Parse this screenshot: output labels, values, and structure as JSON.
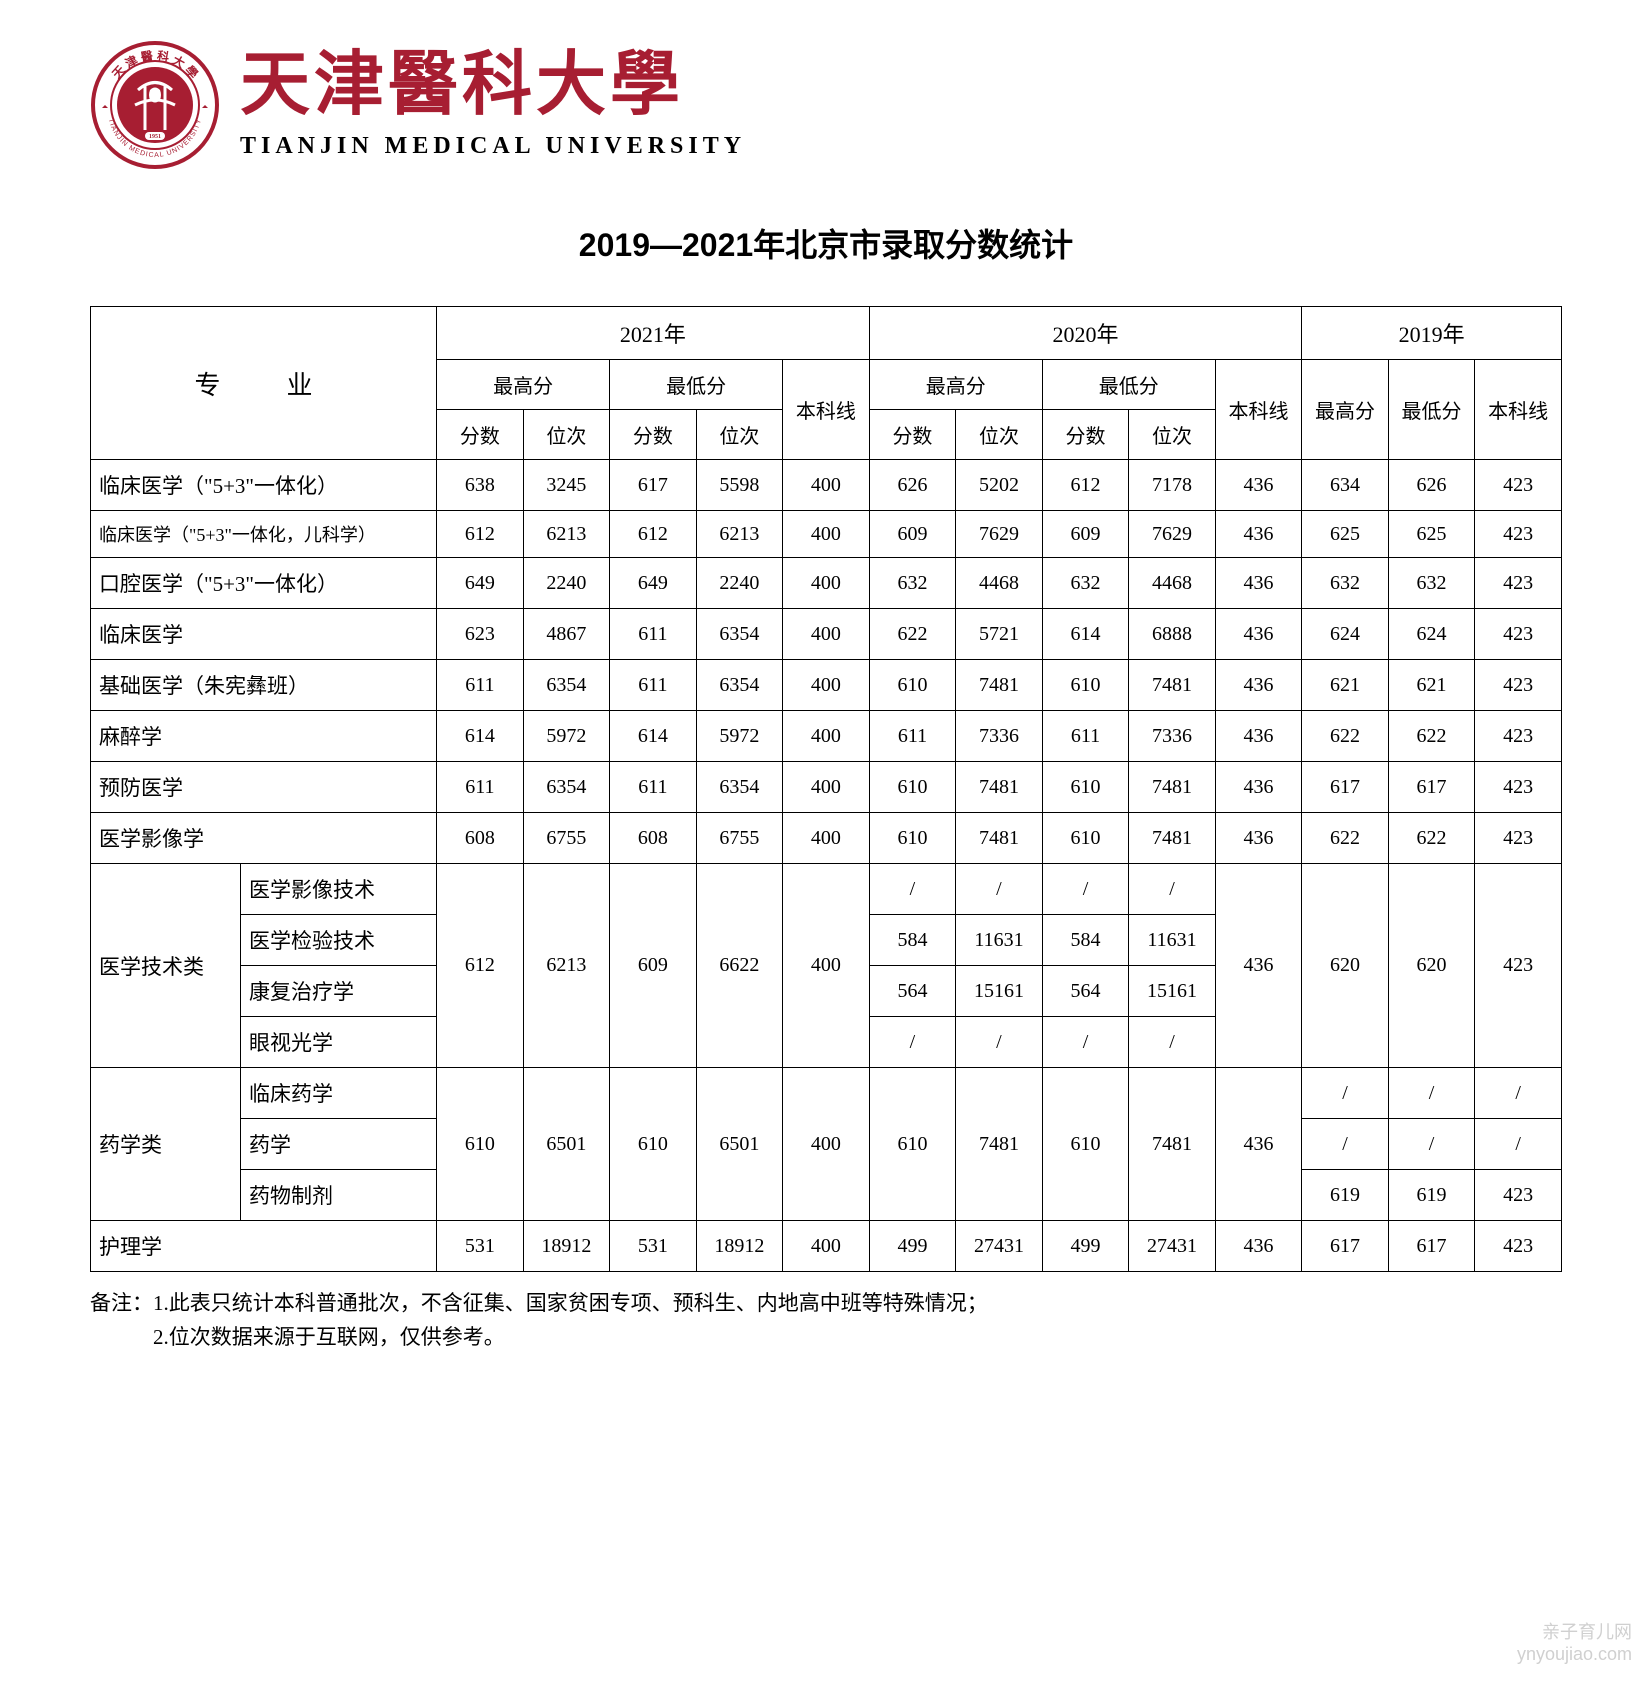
{
  "header": {
    "cn_name": "天津醫科大學",
    "en_name": "TIANJIN MEDICAL UNIVERSITY",
    "seal_text_cn": "天津醫科大學",
    "seal_text_en": "TIANJIN MEDICAL UNIVERSITY",
    "seal_year": "1951"
  },
  "title": "2019—2021年北京市录取分数统计",
  "table": {
    "header": {
      "major": "专　业",
      "years": [
        "2021年",
        "2020年",
        "2019年"
      ],
      "max_score": "最高分",
      "min_score": "最低分",
      "benke": "本科线",
      "score": "分数",
      "rank": "位次"
    },
    "rows": [
      {
        "major": "临床医学（\"5+3\"一体化）",
        "y2021": {
          "max_score": "638",
          "max_rank": "3245",
          "min_score": "617",
          "min_rank": "5598",
          "benke": "400"
        },
        "y2020": {
          "max_score": "626",
          "max_rank": "5202",
          "min_score": "612",
          "min_rank": "7178",
          "benke": "436"
        },
        "y2019": {
          "max": "634",
          "min": "626",
          "benke": "423"
        }
      },
      {
        "major": "临床医学（\"5+3\"一体化，儿科学）",
        "small": true,
        "y2021": {
          "max_score": "612",
          "max_rank": "6213",
          "min_score": "612",
          "min_rank": "6213",
          "benke": "400"
        },
        "y2020": {
          "max_score": "609",
          "max_rank": "7629",
          "min_score": "609",
          "min_rank": "7629",
          "benke": "436"
        },
        "y2019": {
          "max": "625",
          "min": "625",
          "benke": "423"
        }
      },
      {
        "major": "口腔医学（\"5+3\"一体化）",
        "y2021": {
          "max_score": "649",
          "max_rank": "2240",
          "min_score": "649",
          "min_rank": "2240",
          "benke": "400"
        },
        "y2020": {
          "max_score": "632",
          "max_rank": "4468",
          "min_score": "632",
          "min_rank": "4468",
          "benke": "436"
        },
        "y2019": {
          "max": "632",
          "min": "632",
          "benke": "423"
        }
      },
      {
        "major": "临床医学",
        "y2021": {
          "max_score": "623",
          "max_rank": "4867",
          "min_score": "611",
          "min_rank": "6354",
          "benke": "400"
        },
        "y2020": {
          "max_score": "622",
          "max_rank": "5721",
          "min_score": "614",
          "min_rank": "6888",
          "benke": "436"
        },
        "y2019": {
          "max": "624",
          "min": "624",
          "benke": "423"
        }
      },
      {
        "major": "基础医学（朱宪彝班）",
        "y2021": {
          "max_score": "611",
          "max_rank": "6354",
          "min_score": "611",
          "min_rank": "6354",
          "benke": "400"
        },
        "y2020": {
          "max_score": "610",
          "max_rank": "7481",
          "min_score": "610",
          "min_rank": "7481",
          "benke": "436"
        },
        "y2019": {
          "max": "621",
          "min": "621",
          "benke": "423"
        }
      },
      {
        "major": "麻醉学",
        "y2021": {
          "max_score": "614",
          "max_rank": "5972",
          "min_score": "614",
          "min_rank": "5972",
          "benke": "400"
        },
        "y2020": {
          "max_score": "611",
          "max_rank": "7336",
          "min_score": "611",
          "min_rank": "7336",
          "benke": "436"
        },
        "y2019": {
          "max": "622",
          "min": "622",
          "benke": "423"
        }
      },
      {
        "major": "预防医学",
        "y2021": {
          "max_score": "611",
          "max_rank": "6354",
          "min_score": "611",
          "min_rank": "6354",
          "benke": "400"
        },
        "y2020": {
          "max_score": "610",
          "max_rank": "7481",
          "min_score": "610",
          "min_rank": "7481",
          "benke": "436"
        },
        "y2019": {
          "max": "617",
          "min": "617",
          "benke": "423"
        }
      },
      {
        "major": "医学影像学",
        "y2021": {
          "max_score": "608",
          "max_rank": "6755",
          "min_score": "608",
          "min_rank": "6755",
          "benke": "400"
        },
        "y2020": {
          "max_score": "610",
          "max_rank": "7481",
          "min_score": "610",
          "min_rank": "7481",
          "benke": "436"
        },
        "y2019": {
          "max": "622",
          "min": "622",
          "benke": "423"
        }
      }
    ],
    "group_med_tech": {
      "group_name": "医学技术类",
      "subs": [
        "医学影像技术",
        "医学检验技术",
        "康复治疗学",
        "眼视光学"
      ],
      "y2021": {
        "max_score": "612",
        "max_rank": "6213",
        "min_score": "609",
        "min_rank": "6622",
        "benke": "400"
      },
      "y2020": [
        {
          "max_score": "/",
          "max_rank": "/",
          "min_score": "/",
          "min_rank": "/"
        },
        {
          "max_score": "584",
          "max_rank": "11631",
          "min_score": "584",
          "min_rank": "11631"
        },
        {
          "max_score": "564",
          "max_rank": "15161",
          "min_score": "564",
          "min_rank": "15161"
        },
        {
          "max_score": "/",
          "max_rank": "/",
          "min_score": "/",
          "min_rank": "/"
        }
      ],
      "y2020_benke": "436",
      "y2019": {
        "max": "620",
        "min": "620",
        "benke": "423"
      }
    },
    "group_pharmacy": {
      "group_name": "药学类",
      "subs": [
        "临床药学",
        "药学",
        "药物制剂"
      ],
      "y2021": {
        "max_score": "610",
        "max_rank": "6501",
        "min_score": "610",
        "min_rank": "6501",
        "benke": "400"
      },
      "y2020": {
        "max_score": "610",
        "max_rank": "7481",
        "min_score": "610",
        "min_rank": "7481",
        "benke": "436"
      },
      "y2019": [
        {
          "max": "/",
          "min": "/",
          "benke": "/"
        },
        {
          "max": "/",
          "min": "/",
          "benke": "/"
        },
        {
          "max": "619",
          "min": "619",
          "benke": "423"
        }
      ]
    },
    "nursing": {
      "major": "护理学",
      "y2021": {
        "max_score": "531",
        "max_rank": "18912",
        "min_score": "531",
        "min_rank": "18912",
        "benke": "400"
      },
      "y2020": {
        "max_score": "499",
        "max_rank": "27431",
        "min_score": "499",
        "min_rank": "27431",
        "benke": "436"
      },
      "y2019": {
        "max": "617",
        "min": "617",
        "benke": "423"
      }
    }
  },
  "notes": {
    "line1": "备注：1.此表只统计本科普通批次，不含征集、国家贫困专项、预科生、内地高中班等特殊情况；",
    "line2": "　　　2.位次数据来源于互联网，仅供参考。"
  },
  "watermark": {
    "line1": "亲子育儿网",
    "line2": "ynyoujiao.com"
  },
  "styling": {
    "brand_color": "#a71e32",
    "border_color": "#000000",
    "background": "#ffffff",
    "title_fontsize": 32,
    "cell_fontsize": 20,
    "cn_name_fontsize": 70,
    "en_name_fontsize": 24
  }
}
